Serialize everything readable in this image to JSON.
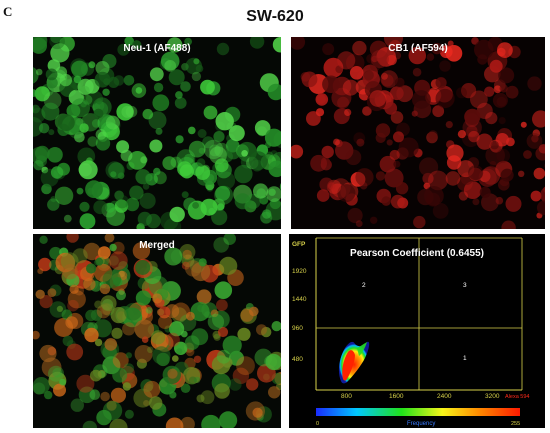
{
  "figure": {
    "panel_letter": "C",
    "title": "SW-620"
  },
  "panels": {
    "neu1": {
      "label": "Neu-1 (AF488)",
      "color": "#2fae33"
    },
    "cb1": {
      "label": "CB1 (AF594)",
      "color": "#c41a18"
    },
    "merged": {
      "label": "Merged",
      "color": "#6a8a22"
    }
  },
  "scatter": {
    "title": "Pearson Coefficient (0.6455)",
    "y_axis_label": "GFP",
    "y_ticks": [
      "1920",
      "1440",
      "960",
      "480"
    ],
    "x_ticks": [
      "800",
      "1600",
      "2400",
      "3200"
    ],
    "x_axis_label": "Alexa 594",
    "quadrant_labels": {
      "upper_left": "2",
      "upper_right": "3",
      "lower_right": "1"
    },
    "colorbar": {
      "label": "Frequency",
      "min_label": "0",
      "max_label": "255",
      "colors": [
        "#1a2cff",
        "#00c8ff",
        "#21e21a",
        "#f7f51a",
        "#ff8a00",
        "#ff1a00"
      ]
    },
    "axis_color": "#d8d24a",
    "pearson_coefficient": 0.6455
  }
}
